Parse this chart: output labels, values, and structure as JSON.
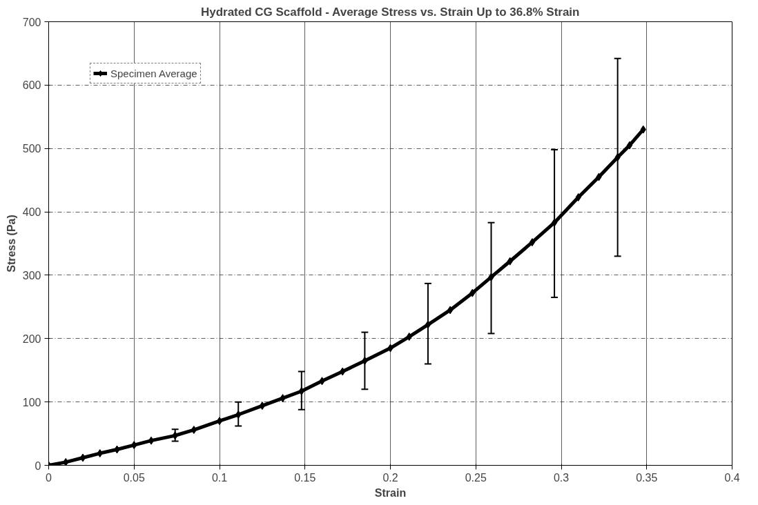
{
  "chart_data": {
    "type": "line",
    "title": "Hydrated CG Scaffold - Average Stress vs. Strain Up to 36.8% Strain",
    "xlabel": "Strain",
    "ylabel": "Stress (Pa)",
    "x": [
      0,
      0.01,
      0.02,
      0.03,
      0.04,
      0.05,
      0.06,
      0.074,
      0.085,
      0.1,
      0.111,
      0.125,
      0.137,
      0.148,
      0.16,
      0.172,
      0.185,
      0.2,
      0.211,
      0.222,
      0.235,
      0.248,
      0.259,
      0.27,
      0.283,
      0.296,
      0.31,
      0.322,
      0.333,
      0.34,
      0.348
    ],
    "series": [
      {
        "name": "Specimen Average",
        "color": "#000000",
        "values": [
          0,
          5,
          12,
          19,
          25,
          32,
          39,
          47,
          56,
          70,
          80,
          94,
          106,
          117,
          133,
          148,
          165,
          185,
          203,
          222,
          245,
          272,
          297,
          322,
          352,
          383,
          423,
          455,
          486,
          505,
          530
        ],
        "errors": [
          null,
          null,
          null,
          null,
          null,
          null,
          null,
          [
            38,
            57
          ],
          null,
          null,
          [
            62,
            100
          ],
          null,
          null,
          [
            88,
            148
          ],
          null,
          null,
          [
            120,
            210
          ],
          null,
          null,
          [
            160,
            287
          ],
          null,
          null,
          [
            208,
            383
          ],
          null,
          null,
          [
            265,
            498
          ],
          null,
          null,
          [
            330,
            642
          ],
          null,
          null
        ]
      }
    ],
    "xlim": [
      0,
      0.4
    ],
    "xticks": [
      0,
      0.05,
      0.1,
      0.15,
      0.2,
      0.25,
      0.3,
      0.35,
      0.4
    ],
    "ylim": [
      0,
      700
    ],
    "yticks": [
      0,
      100,
      200,
      300,
      400,
      500,
      600,
      700
    ],
    "grid": true,
    "legend": "top left",
    "marker": "diamond",
    "line_style": "solid"
  }
}
